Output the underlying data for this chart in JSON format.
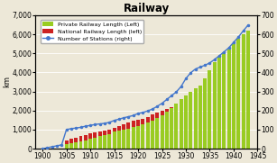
{
  "title": "Railway",
  "ylabel_left": "km",
  "background_color": "#ede8d8",
  "plot_bg_color": "#ede8d8",
  "years": [
    1900,
    1901,
    1902,
    1903,
    1904,
    1905,
    1906,
    1907,
    1908,
    1909,
    1910,
    1911,
    1912,
    1913,
    1914,
    1915,
    1916,
    1917,
    1918,
    1919,
    1920,
    1921,
    1922,
    1923,
    1924,
    1925,
    1926,
    1927,
    1928,
    1929,
    1930,
    1931,
    1932,
    1933,
    1934,
    1935,
    1936,
    1937,
    1938,
    1939,
    1940,
    1941,
    1942,
    1943
  ],
  "private_railway": [
    0,
    0,
    0,
    0,
    0,
    250,
    300,
    350,
    400,
    450,
    500,
    580,
    650,
    700,
    780,
    900,
    950,
    990,
    1050,
    1120,
    1200,
    1280,
    1380,
    1480,
    1620,
    1750,
    1950,
    2150,
    2350,
    2600,
    2800,
    3000,
    3150,
    3300,
    3700,
    4100,
    4550,
    4800,
    5050,
    5200,
    5500,
    5750,
    6000,
    6200
  ],
  "national_railway": [
    0,
    0,
    0,
    0,
    0,
    450,
    500,
    580,
    650,
    700,
    800,
    850,
    900,
    950,
    1000,
    1100,
    1200,
    1300,
    1380,
    1450,
    1500,
    1580,
    1680,
    1800,
    1900,
    2000,
    2100,
    2200,
    2350,
    2500,
    2600,
    2700,
    2850,
    2950,
    3050,
    3100,
    3200,
    3500,
    3700,
    3800,
    3950,
    4100,
    4350,
    4450
  ],
  "stations": [
    0,
    5,
    10,
    15,
    20,
    100,
    105,
    108,
    112,
    118,
    122,
    127,
    130,
    133,
    138,
    148,
    155,
    162,
    168,
    174,
    185,
    190,
    198,
    208,
    222,
    238,
    258,
    278,
    298,
    326,
    368,
    398,
    418,
    428,
    438,
    450,
    468,
    488,
    508,
    530,
    558,
    586,
    618,
    648
  ],
  "private_color": "#99cc22",
  "national_color": "#cc2222",
  "stations_color": "#4477cc",
  "ylim_left": [
    0,
    7000
  ],
  "ylim_right": [
    0,
    700
  ],
  "yticks_left": [
    0,
    1000,
    2000,
    3000,
    4000,
    5000,
    6000,
    7000
  ],
  "yticks_right": [
    0,
    100,
    200,
    300,
    400,
    500,
    600,
    700
  ],
  "xticks": [
    1900,
    1905,
    1910,
    1915,
    1920,
    1925,
    1930,
    1935,
    1940,
    1945
  ],
  "legend_private": "Private Railway Length (Left)",
  "legend_national": "National Railway Length (left)",
  "legend_stations": "Number of Stations (right)"
}
